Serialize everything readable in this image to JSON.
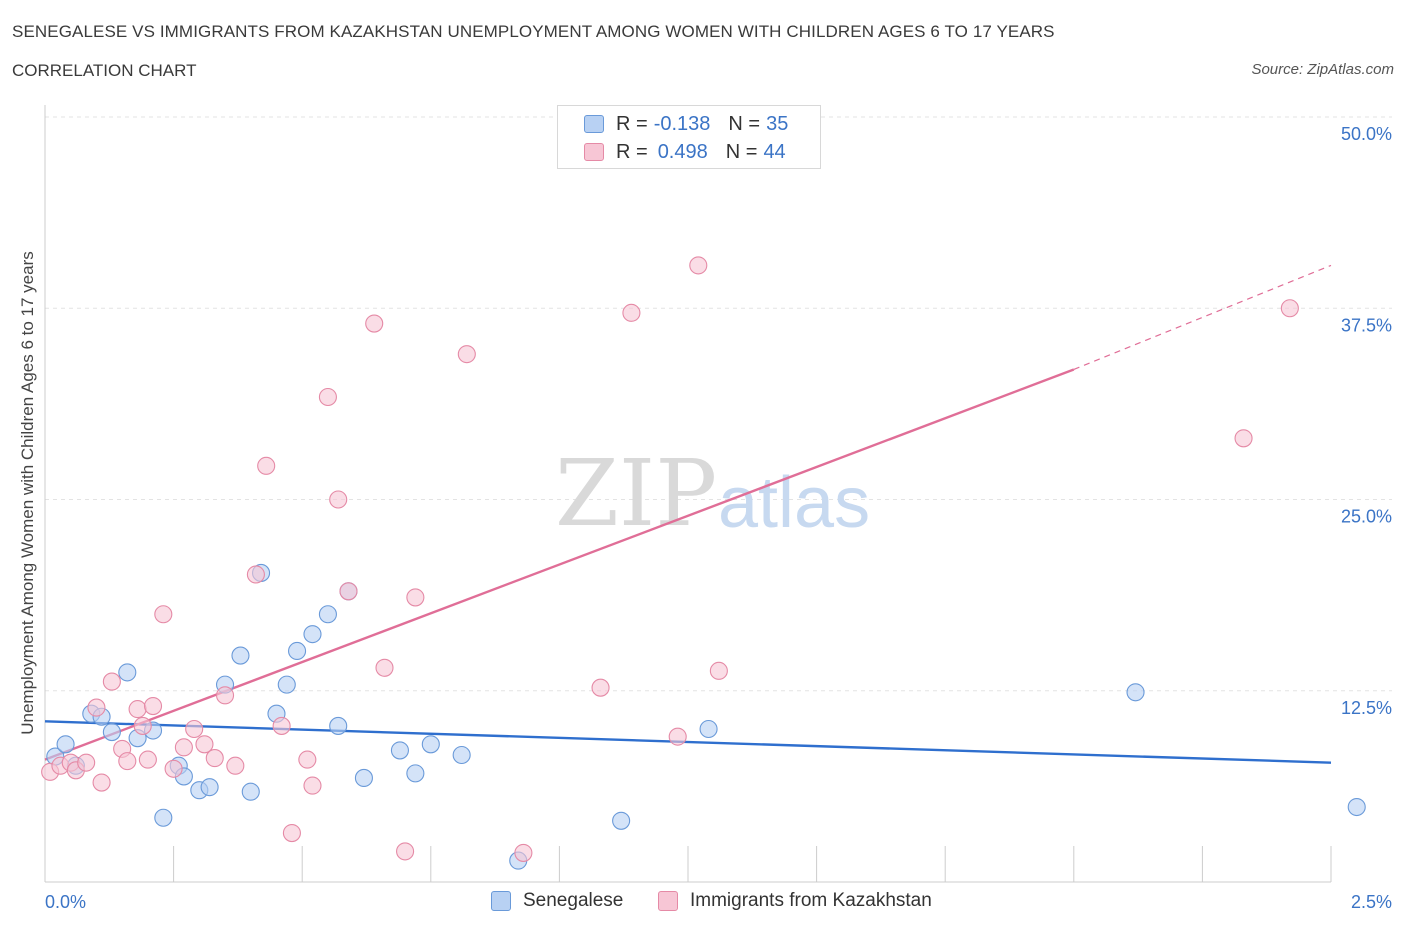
{
  "title": "SENEGALESE VS IMMIGRANTS FROM KAZAKHSTAN UNEMPLOYMENT AMONG WOMEN WITH CHILDREN AGES 6 TO 17 YEARS",
  "subtitle": "CORRELATION CHART",
  "source": "Source: ZipAtlas.com",
  "watermark": {
    "zip": "ZIP",
    "atlas": "atlas"
  },
  "legend": {
    "series1": {
      "r_label": "R =",
      "r_value": "-0.138",
      "n_label": "N =",
      "n_value": "35"
    },
    "series2": {
      "r_label": "R =",
      "r_value": "0.498",
      "n_label": "N =",
      "n_value": "44"
    }
  },
  "colors": {
    "senegalese_fill": "#b8d1f3",
    "senegalese_stroke": "#6a9ad9",
    "senegalese_line": "#2f6fce",
    "kazakhstan_fill": "#f7c6d5",
    "kazakhstan_stroke": "#e58aa6",
    "kazakhstan_line": "#e06e97",
    "axis_text": "#3b74c6",
    "grid": "#e3e3e3"
  },
  "chart_data": {
    "type": "scatter",
    "title": "SENEGALESE VS IMMIGRANTS FROM KAZAKHSTAN UNEMPLOYMENT AMONG WOMEN WITH CHILDREN AGES 6 TO 17 YEARS",
    "xlabel": "",
    "ylabel": "Unemployment Among Women with Children Ages 6 to 17 years",
    "xlim": [
      0,
      2.5
    ],
    "ylim": [
      0,
      50
    ],
    "x_tick_labels": [
      "0.0%",
      "2.5%"
    ],
    "y_tick_labels": [
      "12.5%",
      "25.0%",
      "37.5%",
      "50.0%"
    ],
    "y_ticks": [
      12.5,
      25.0,
      37.5,
      50.0
    ],
    "grid": "horizontal dashed",
    "legend_position": "top-center",
    "series": [
      {
        "name": "Senegalese",
        "points": [
          [
            0.02,
            8.2
          ],
          [
            0.04,
            9.0
          ],
          [
            0.06,
            7.6
          ],
          [
            0.09,
            11.0
          ],
          [
            0.11,
            10.8
          ],
          [
            0.13,
            9.8
          ],
          [
            0.16,
            13.7
          ],
          [
            0.18,
            9.4
          ],
          [
            0.21,
            9.9
          ],
          [
            0.23,
            4.2
          ],
          [
            0.26,
            7.6
          ],
          [
            0.27,
            6.9
          ],
          [
            0.3,
            6.0
          ],
          [
            0.32,
            6.2
          ],
          [
            0.35,
            12.9
          ],
          [
            0.38,
            14.8
          ],
          [
            0.4,
            5.9
          ],
          [
            0.42,
            20.2
          ],
          [
            0.45,
            11.0
          ],
          [
            0.47,
            12.9
          ],
          [
            0.49,
            15.1
          ],
          [
            0.52,
            16.2
          ],
          [
            0.55,
            17.5
          ],
          [
            0.57,
            10.2
          ],
          [
            0.59,
            19.0
          ],
          [
            0.62,
            6.8
          ],
          [
            0.69,
            8.6
          ],
          [
            0.72,
            7.1
          ],
          [
            0.75,
            9.0
          ],
          [
            0.81,
            8.3
          ],
          [
            0.92,
            1.4
          ],
          [
            1.12,
            4.0
          ],
          [
            1.29,
            10.0
          ],
          [
            2.12,
            12.4
          ],
          [
            2.55,
            4.9
          ]
        ],
        "trend": {
          "x": [
            0.0,
            2.5
          ],
          "y": [
            10.5,
            7.8
          ]
        }
      },
      {
        "name": "Immigrants from Kazakhstan",
        "points": [
          [
            0.01,
            7.2
          ],
          [
            0.03,
            7.6
          ],
          [
            0.05,
            7.8
          ],
          [
            0.06,
            7.3
          ],
          [
            0.08,
            7.8
          ],
          [
            0.1,
            11.4
          ],
          [
            0.11,
            6.5
          ],
          [
            0.13,
            13.1
          ],
          [
            0.15,
            8.7
          ],
          [
            0.16,
            7.9
          ],
          [
            0.18,
            11.3
          ],
          [
            0.19,
            10.2
          ],
          [
            0.2,
            8.0
          ],
          [
            0.21,
            11.5
          ],
          [
            0.23,
            17.5
          ],
          [
            0.25,
            7.4
          ],
          [
            0.27,
            8.8
          ],
          [
            0.29,
            10.0
          ],
          [
            0.31,
            9.0
          ],
          [
            0.33,
            8.1
          ],
          [
            0.35,
            12.2
          ],
          [
            0.37,
            7.6
          ],
          [
            0.41,
            20.1
          ],
          [
            0.43,
            27.2
          ],
          [
            0.46,
            10.2
          ],
          [
            0.48,
            3.2
          ],
          [
            0.51,
            8.0
          ],
          [
            0.52,
            6.3
          ],
          [
            0.55,
            31.7
          ],
          [
            0.57,
            25.0
          ],
          [
            0.59,
            19.0
          ],
          [
            0.64,
            36.5
          ],
          [
            0.66,
            14.0
          ],
          [
            0.7,
            2.0
          ],
          [
            0.72,
            18.6
          ],
          [
            0.82,
            34.5
          ],
          [
            0.93,
            1.9
          ],
          [
            1.08,
            12.7
          ],
          [
            1.14,
            37.2
          ],
          [
            1.23,
            9.5
          ],
          [
            1.27,
            40.3
          ],
          [
            1.31,
            13.8
          ],
          [
            2.33,
            29.0
          ],
          [
            2.42,
            37.5
          ]
        ],
        "trend": {
          "x": [
            0.0,
            2.0
          ],
          "y": [
            8.0,
            33.5
          ]
        },
        "trend_extension": {
          "x": [
            2.0,
            2.5
          ],
          "y": [
            33.5,
            40.3
          ]
        }
      }
    ]
  },
  "bottom_legend": {
    "series1": "Senegalese",
    "series2": "Immigrants from Kazakhstan"
  }
}
